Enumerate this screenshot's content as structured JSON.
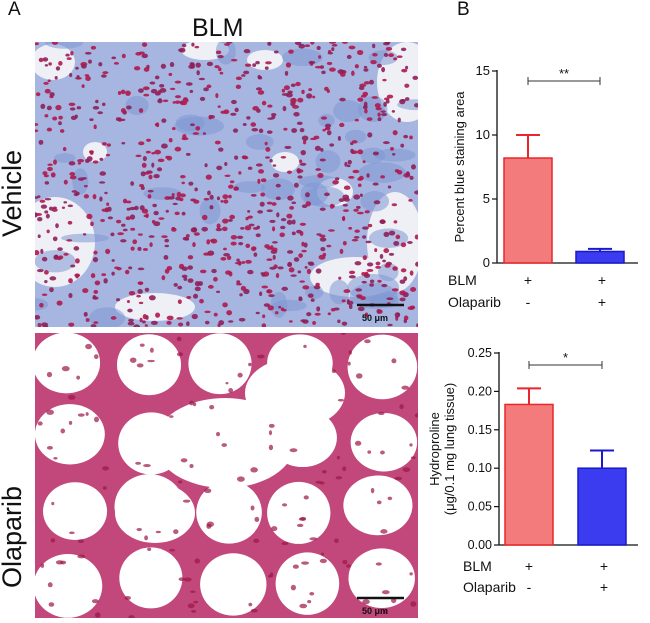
{
  "panel_a": {
    "letter": "A",
    "title": "BLM",
    "rows": [
      {
        "label": "Vehicle",
        "scale_bar": "50 μm"
      },
      {
        "label": "Olaparib",
        "scale_bar": "50 μm"
      }
    ]
  },
  "panel_b": {
    "letter": "B"
  },
  "colors": {
    "bar1": "#f47b7b",
    "bar1_edge": "#e8262b",
    "bar2": "#3b3bf0",
    "bar2_edge": "#1a1acc",
    "tissue_blue": "#9fb0dd",
    "nuclei": "#b0184e"
  },
  "chart_data": [
    {
      "type": "bar",
      "categories": [
        "BLM + / Olaparib -",
        "BLM + / Olaparib +"
      ],
      "values": [
        8.2,
        0.9
      ],
      "errors": [
        1.8,
        0.2
      ],
      "ylabel": "Percent blue staining area",
      "ylim": [
        0,
        15
      ],
      "yticks": [
        "0",
        "5",
        "10",
        "15"
      ],
      "significance": "**",
      "conditions": [
        {
          "name": "BLM",
          "marks": [
            "+",
            "+"
          ]
        },
        {
          "name": "Olaparib",
          "marks": [
            "-",
            "+"
          ]
        }
      ]
    },
    {
      "type": "bar",
      "categories": [
        "BLM + / Olaparib -",
        "BLM + / Olaparib +"
      ],
      "values": [
        0.183,
        0.1
      ],
      "errors": [
        0.021,
        0.023
      ],
      "ylabel": "Hydroproline",
      "ylabel2": "(μg/0.1 mg lung tissue)",
      "ylim": [
        0,
        0.25
      ],
      "yticks": [
        "0.00",
        "0.05",
        "0.10",
        "0.15",
        "0.20",
        "0.25"
      ],
      "significance": "*",
      "conditions": [
        {
          "name": "BLM",
          "marks": [
            "+",
            "+"
          ]
        },
        {
          "name": "Olaparib",
          "marks": [
            "-",
            "+"
          ]
        }
      ]
    }
  ]
}
